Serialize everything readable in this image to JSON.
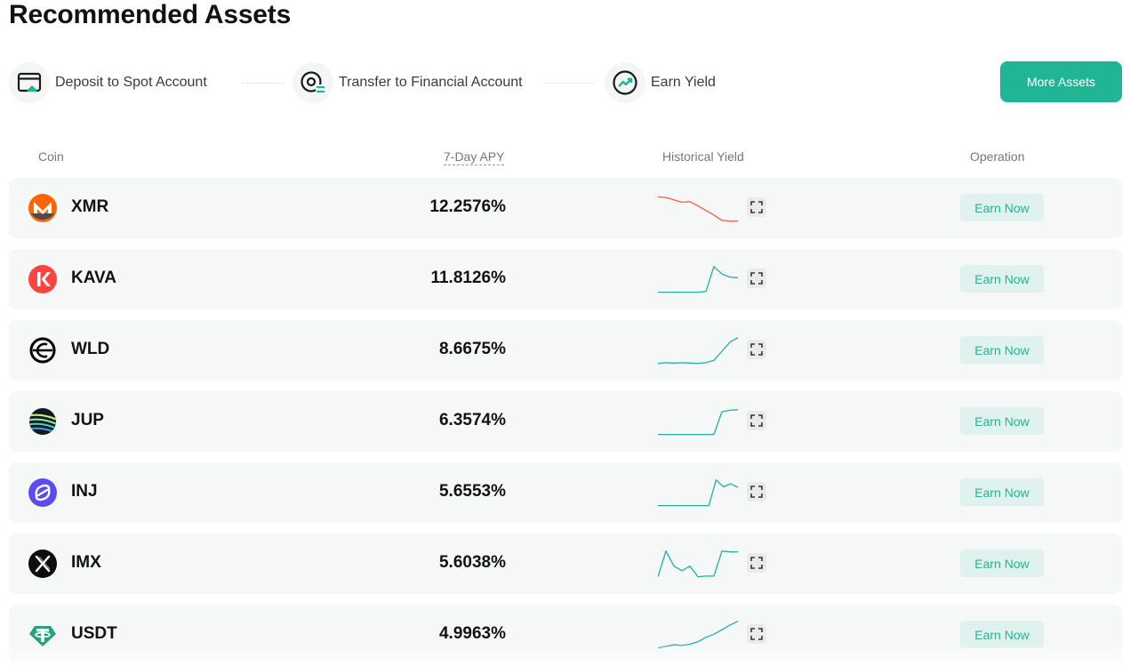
{
  "page": {
    "title": "Recommended Assets"
  },
  "steps": [
    {
      "label": "Deposit to Spot Account",
      "icon": "card-deposit-icon"
    },
    {
      "label": "Transfer to Financial Account",
      "icon": "transfer-icon"
    },
    {
      "label": "Earn Yield",
      "icon": "yield-trend-icon"
    }
  ],
  "more_assets_label": "More Assets",
  "table": {
    "headers": {
      "coin": "Coin",
      "apy": "7-Day APY",
      "historical": "Historical Yield",
      "operation": "Operation"
    },
    "earn_label": "Earn Now",
    "rows": [
      {
        "coin": "XMR",
        "apy": "12.2576%",
        "icon": "monero-icon",
        "trend": "down",
        "spark": [
          0.9,
          0.88,
          0.8,
          0.72,
          0.74,
          0.6,
          0.45,
          0.3,
          0.12,
          0.1,
          0.1
        ]
      },
      {
        "coin": "KAVA",
        "apy": "11.8126%",
        "icon": "kava-icon",
        "trend": "up",
        "spark": [
          0.1,
          0.1,
          0.1,
          0.1,
          0.1,
          0.1,
          0.12,
          0.95,
          0.7,
          0.6,
          0.58
        ]
      },
      {
        "coin": "WLD",
        "apy": "8.6675%",
        "icon": "worldcoin-icon",
        "trend": "up",
        "spark": [
          0.1,
          0.12,
          0.11,
          0.12,
          0.11,
          0.1,
          0.12,
          0.2,
          0.5,
          0.8,
          0.95
        ]
      },
      {
        "coin": "JUP",
        "apy": "6.3574%",
        "icon": "jupiter-icon",
        "trend": "up",
        "spark": [
          0.1,
          0.1,
          0.1,
          0.1,
          0.1,
          0.1,
          0.1,
          0.1,
          0.85,
          0.9,
          0.92
        ]
      },
      {
        "coin": "INJ",
        "apy": "5.6553%",
        "icon": "injective-icon",
        "trend": "up",
        "spark": [
          0.1,
          0.1,
          0.1,
          0.1,
          0.1,
          0.1,
          0.1,
          0.1,
          0.95,
          0.72,
          0.82,
          0.7
        ]
      },
      {
        "coin": "IMX",
        "apy": "5.6038%",
        "icon": "immutable-x-icon",
        "trend": "mixed",
        "spark": [
          0.1,
          0.95,
          0.45,
          0.3,
          0.45,
          0.1,
          0.12,
          0.12,
          0.95,
          0.92,
          0.92
        ]
      },
      {
        "coin": "USDT",
        "apy": "4.9963%",
        "icon": "tether-icon",
        "trend": "up",
        "spark": [
          0.1,
          0.15,
          0.2,
          0.18,
          0.22,
          0.3,
          0.45,
          0.55,
          0.7,
          0.85,
          0.98
        ]
      }
    ]
  },
  "colors": {
    "accent": "#20b595",
    "trend_up": "#20b2a0",
    "trend_down": "#f05f46",
    "row_bg": "#f6f7f7"
  }
}
